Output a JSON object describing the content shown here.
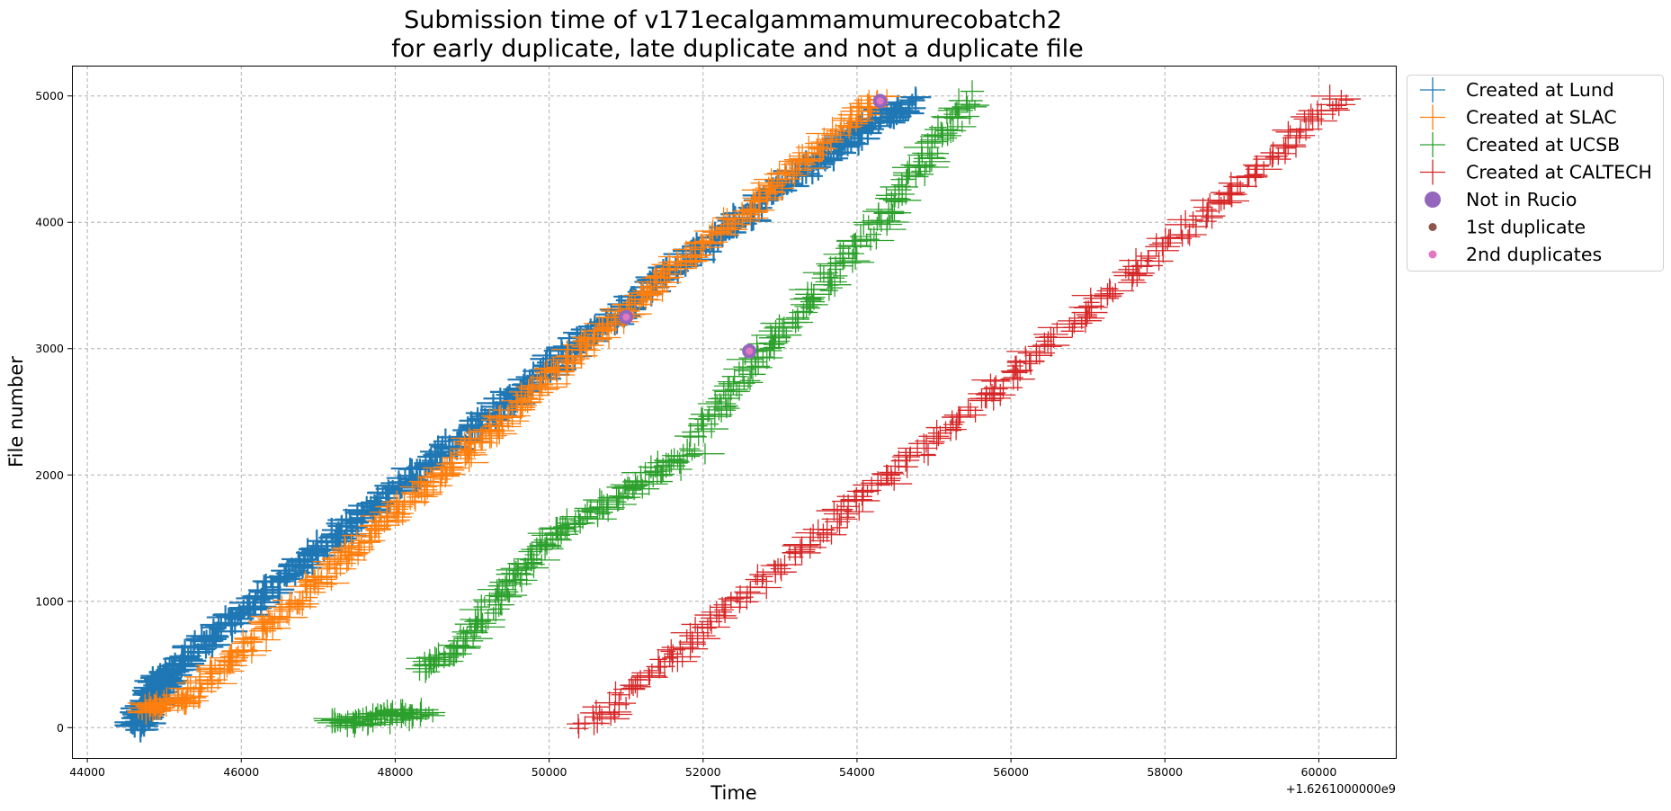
{
  "chart_data": {
    "type": "scatter",
    "title_line1": "Submission time of v171ecalgammamumurecobatch2",
    "title_line2": "for early duplicate, late duplicate and not a duplicate file",
    "xlabel": "Time",
    "ylabel": "File number",
    "x_offset_label": "+1.6261000000e9",
    "xlim": [
      43800,
      61000
    ],
    "ylim": [
      -240,
      5240
    ],
    "xticks": [
      44000,
      46000,
      48000,
      50000,
      52000,
      54000,
      56000,
      58000,
      60000
    ],
    "yticks": [
      0,
      1000,
      2000,
      3000,
      4000,
      5000
    ],
    "grid": true,
    "legend_placement": "outside upper right",
    "series": [
      {
        "name": "Created at Lund",
        "color": "#1f77b4",
        "marker": "plus",
        "segments": [
          {
            "x": [
              44650,
              45050
            ],
            "y": [
              0,
              450
            ],
            "n": 110
          },
          {
            "x": [
              45050,
              50500
            ],
            "y": [
              450,
              3100
            ],
            "n": 300
          },
          {
            "x": [
              50500,
              53500
            ],
            "y": [
              3100,
              4500
            ],
            "n": 150
          },
          {
            "x": [
              53500,
              54700
            ],
            "y": [
              4500,
              4960
            ],
            "n": 70
          }
        ]
      },
      {
        "name": "Created at SLAC",
        "color": "#ff7f0e",
        "marker": "plus",
        "segments": [
          {
            "x": [
              44700,
              45300
            ],
            "y": [
              130,
              230
            ],
            "n": 40
          },
          {
            "x": [
              45300,
              50800
            ],
            "y": [
              230,
              3200
            ],
            "n": 300
          },
          {
            "x": [
              50800,
              54300
            ],
            "y": [
              3200,
              5000
            ],
            "n": 170
          }
        ]
      },
      {
        "name": "Created at UCSB",
        "color": "#2ca02c",
        "marker": "plus",
        "segments": [
          {
            "x": [
              47200,
              48400
            ],
            "y": [
              30,
              130
            ],
            "n": 70
          },
          {
            "x": [
              48300,
              48700
            ],
            "y": [
              470,
              560
            ],
            "n": 18
          },
          {
            "x": [
              48700,
              50000
            ],
            "y": [
              560,
              1500
            ],
            "n": 80
          },
          {
            "x": [
              50000,
              51900
            ],
            "y": [
              1500,
              2200
            ],
            "n": 80
          },
          {
            "x": [
              51900,
              52800
            ],
            "y": [
              2300,
              3000
            ],
            "n": 50
          },
          {
            "x": [
              52800,
              54300
            ],
            "y": [
              3000,
              4000
            ],
            "n": 70
          },
          {
            "x": [
              54300,
              55500
            ],
            "y": [
              4000,
              5000
            ],
            "n": 70
          }
        ]
      },
      {
        "name": "Created at CALTECH",
        "color": "#d62728",
        "marker": "plus",
        "segments": [
          {
            "x": [
              50300,
              50600
            ],
            "y": [
              30,
              40
            ],
            "n": 5
          },
          {
            "x": [
              50600,
              60300
            ],
            "y": [
              60,
              4980
            ],
            "n": 290
          }
        ]
      },
      {
        "name": "Not in Rucio",
        "color": "#9467bd",
        "marker": "circle",
        "points": [
          [
            51000,
            3250
          ],
          [
            52600,
            2980
          ],
          [
            54300,
            4960
          ]
        ]
      },
      {
        "name": "1st duplicate",
        "color": "#8c564b",
        "marker": "dot",
        "points": []
      },
      {
        "name": "2nd duplicates",
        "color": "#e377c2",
        "marker": "dot",
        "points": [
          [
            51000,
            3250
          ],
          [
            52600,
            2980
          ],
          [
            54300,
            4960
          ]
        ]
      }
    ]
  }
}
